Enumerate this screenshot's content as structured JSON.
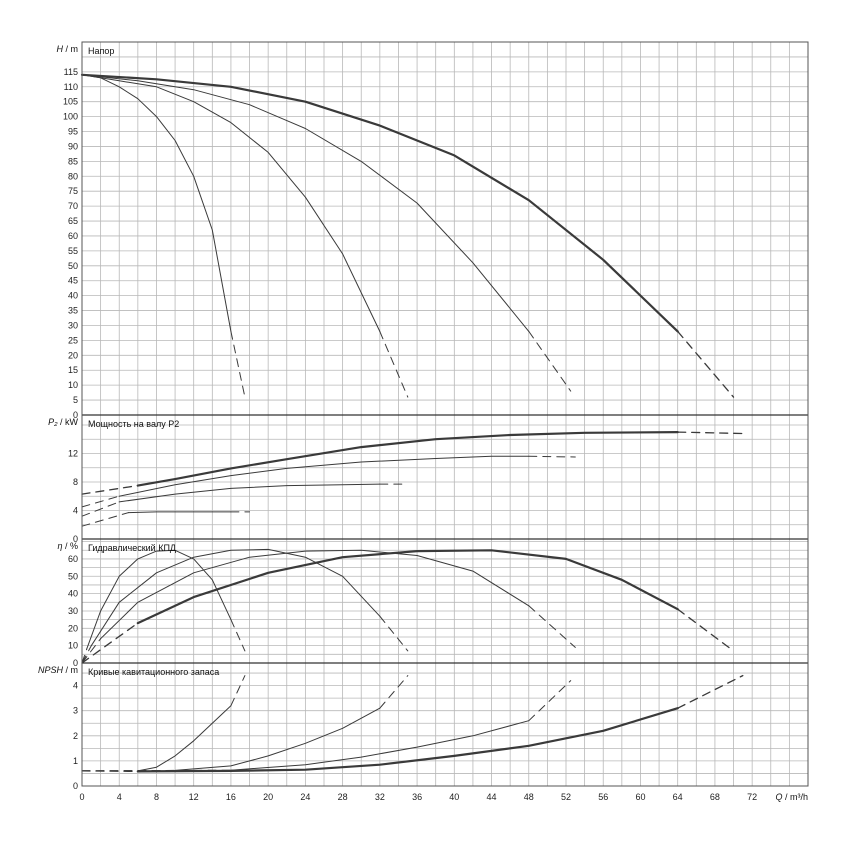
{
  "chart_data": {
    "type": "line",
    "x_axis": {
      "label_var": "Q",
      "label_unit": "m³/h",
      "min": 0,
      "max": 78,
      "ticks": [
        0,
        4,
        8,
        12,
        16,
        20,
        24,
        28,
        32,
        36,
        40,
        44,
        48,
        52,
        56,
        60,
        64,
        68,
        72
      ]
    },
    "panels": [
      {
        "id": "head",
        "title": "Напор",
        "ylabel_var": "H",
        "ylabel_unit": "m",
        "ylim": [
          0,
          125
        ],
        "yticks": [
          0,
          5,
          10,
          15,
          20,
          25,
          30,
          35,
          40,
          45,
          50,
          55,
          60,
          65,
          70,
          75,
          80,
          85,
          90,
          95,
          100,
          105,
          110,
          115
        ],
        "series": [
          {
            "points": [
              [
                0,
                114
              ],
              [
                2,
                113
              ],
              [
                4,
                110
              ],
              [
                6,
                106
              ],
              [
                8,
                100
              ],
              [
                10,
                92
              ],
              [
                12,
                80
              ],
              [
                14,
                62
              ],
              [
                16,
                28
              ]
            ],
            "dashed": [
              [
                16,
                28
              ],
              [
                17.5,
                6
              ]
            ],
            "weight": 1
          },
          {
            "points": [
              [
                0,
                114
              ],
              [
                4,
                112
              ],
              [
                8,
                110
              ],
              [
                12,
                105
              ],
              [
                16,
                98
              ],
              [
                20,
                88
              ],
              [
                24,
                73
              ],
              [
                28,
                54
              ],
              [
                32,
                28
              ]
            ],
            "dashed": [
              [
                32,
                28
              ],
              [
                35,
                6
              ]
            ],
            "weight": 1
          },
          {
            "points": [
              [
                0,
                114
              ],
              [
                6,
                112
              ],
              [
                12,
                109
              ],
              [
                18,
                104
              ],
              [
                24,
                96
              ],
              [
                30,
                85
              ],
              [
                36,
                71
              ],
              [
                42,
                51
              ],
              [
                48,
                28
              ]
            ],
            "dashed": [
              [
                48,
                28
              ],
              [
                52.5,
                8
              ]
            ],
            "weight": 1
          },
          {
            "points": [
              [
                0,
                114
              ],
              [
                8,
                112.5
              ],
              [
                16,
                110
              ],
              [
                24,
                105
              ],
              [
                32,
                97
              ],
              [
                40,
                87
              ],
              [
                48,
                72
              ],
              [
                56,
                52
              ],
              [
                64,
                28
              ]
            ],
            "dashed": [
              [
                64,
                28
              ],
              [
                70,
                6
              ]
            ],
            "weight": 2.2
          }
        ]
      },
      {
        "id": "power",
        "title": "Мощность на валу P2",
        "ylabel_var": "P₂",
        "ylabel_unit": "kW",
        "ylim": [
          0,
          17.4
        ],
        "yticks": [
          0,
          4,
          8,
          12
        ],
        "series": [
          {
            "points": [
              [
                5,
                3.7
              ],
              [
                8,
                3.8
              ],
              [
                12,
                3.8
              ],
              [
                16,
                3.8
              ]
            ],
            "dashed": [
              [
                0,
                1.8
              ],
              [
                5,
                3.7
              ],
              [
                16,
                3.8
              ],
              [
                18,
                3.8
              ]
            ],
            "weight": 1
          },
          {
            "points": [
              [
                4,
                5.2
              ],
              [
                10,
                6.3
              ],
              [
                16,
                7.1
              ],
              [
                22,
                7.5
              ],
              [
                28,
                7.6
              ],
              [
                32,
                7.7
              ]
            ],
            "dashed": [
              [
                0,
                3.2
              ],
              [
                4,
                5.2
              ],
              [
                32,
                7.7
              ],
              [
                35,
                7.7
              ]
            ],
            "weight": 1
          },
          {
            "points": [
              [
                4,
                6.0
              ],
              [
                10,
                7.6
              ],
              [
                16,
                8.9
              ],
              [
                22,
                9.9
              ],
              [
                30,
                10.8
              ],
              [
                38,
                11.3
              ],
              [
                44,
                11.6
              ],
              [
                48,
                11.6
              ]
            ],
            "dashed": [
              [
                0,
                4.5
              ],
              [
                4,
                6.0
              ],
              [
                48,
                11.6
              ],
              [
                53,
                11.5
              ]
            ],
            "weight": 1
          },
          {
            "points": [
              [
                6,
                7.5
              ],
              [
                10,
                8.4
              ],
              [
                16,
                9.9
              ],
              [
                22,
                11.2
              ],
              [
                30,
                12.9
              ],
              [
                38,
                14.0
              ],
              [
                46,
                14.6
              ],
              [
                54,
                14.9
              ],
              [
                64,
                15.0
              ]
            ],
            "dashed": [
              [
                0,
                6.3
              ],
              [
                6,
                7.5
              ],
              [
                64,
                15.0
              ],
              [
                71,
                14.8
              ]
            ],
            "weight": 2.2
          }
        ]
      },
      {
        "id": "efficiency",
        "title": "Гидравлический КПД",
        "ylabel_var": "η",
        "ylabel_unit": "%",
        "ylim": [
          0,
          71.5
        ],
        "yticks": [
          0,
          10,
          20,
          30,
          40,
          50,
          60
        ],
        "series": [
          {
            "points": [
              [
                0.5,
                8
              ],
              [
                2,
                30
              ],
              [
                4,
                50
              ],
              [
                6,
                60
              ],
              [
                8,
                64.5
              ],
              [
                10,
                65
              ],
              [
                12,
                60
              ],
              [
                14,
                48
              ],
              [
                16,
                25
              ]
            ],
            "dashed": [
              [
                0,
                0
              ],
              [
                0.5,
                8
              ],
              [
                16,
                25
              ],
              [
                17.5,
                7
              ]
            ],
            "weight": 1
          },
          {
            "points": [
              [
                1,
                10
              ],
              [
                4,
                35
              ],
              [
                8,
                52
              ],
              [
                12,
                61
              ],
              [
                16,
                65
              ],
              [
                20,
                65.5
              ],
              [
                24,
                61
              ],
              [
                28,
                50
              ],
              [
                32,
                27
              ]
            ],
            "dashed": [
              [
                0,
                0
              ],
              [
                1,
                10
              ],
              [
                32,
                27
              ],
              [
                35,
                7
              ]
            ],
            "weight": 1
          },
          {
            "points": [
              [
                2,
                14
              ],
              [
                6,
                35
              ],
              [
                12,
                52
              ],
              [
                18,
                61
              ],
              [
                24,
                64.5
              ],
              [
                30,
                65
              ],
              [
                36,
                62
              ],
              [
                42,
                53
              ],
              [
                48,
                33
              ]
            ],
            "dashed": [
              [
                0,
                0
              ],
              [
                2,
                14
              ],
              [
                48,
                33
              ],
              [
                53,
                9
              ]
            ],
            "weight": 1
          },
          {
            "points": [
              [
                6,
                23
              ],
              [
                12,
                38
              ],
              [
                20,
                52
              ],
              [
                28,
                61
              ],
              [
                36,
                64.5
              ],
              [
                44,
                65
              ],
              [
                52,
                60
              ],
              [
                58,
                48
              ],
              [
                64,
                31
              ]
            ],
            "dashed": [
              [
                0,
                0
              ],
              [
                6,
                23
              ],
              [
                64,
                31
              ],
              [
                70,
                7
              ]
            ],
            "weight": 2.2
          }
        ]
      },
      {
        "id": "npsh",
        "title": "Кривые кавитационного запаса",
        "ylabel_var": "NPSH",
        "ylabel_unit": "m",
        "ylim": [
          0,
          4.9
        ],
        "yticks": [
          0,
          1,
          2,
          3,
          4
        ],
        "series": [
          {
            "points": [
              [
                6,
                0.6
              ],
              [
                8,
                0.75
              ],
              [
                10,
                1.2
              ],
              [
                12,
                1.8
              ],
              [
                14,
                2.5
              ],
              [
                16,
                3.2
              ]
            ],
            "dashed": [
              [
                0,
                0.6
              ],
              [
                6,
                0.6
              ],
              [
                16,
                3.2
              ],
              [
                17.5,
                4.4
              ]
            ],
            "weight": 1
          },
          {
            "points": [
              [
                10,
                0.62
              ],
              [
                16,
                0.8
              ],
              [
                20,
                1.2
              ],
              [
                24,
                1.7
              ],
              [
                28,
                2.3
              ],
              [
                32,
                3.1
              ]
            ],
            "dashed": [
              [
                0,
                0.6
              ],
              [
                10,
                0.62
              ],
              [
                32,
                3.1
              ],
              [
                35,
                4.4
              ]
            ],
            "weight": 1
          },
          {
            "points": [
              [
                16,
                0.63
              ],
              [
                24,
                0.85
              ],
              [
                30,
                1.15
              ],
              [
                36,
                1.55
              ],
              [
                42,
                2.0
              ],
              [
                48,
                2.6
              ]
            ],
            "dashed": [
              [
                0,
                0.6
              ],
              [
                16,
                0.63
              ],
              [
                48,
                2.6
              ],
              [
                52.5,
                4.2
              ]
            ],
            "weight": 1
          },
          {
            "points": [
              [
                6,
                0.58
              ],
              [
                16,
                0.6
              ],
              [
                24,
                0.65
              ],
              [
                32,
                0.85
              ],
              [
                40,
                1.2
              ],
              [
                48,
                1.6
              ],
              [
                56,
                2.2
              ],
              [
                64,
                3.1
              ]
            ],
            "dashed": [
              [
                0,
                0.6
              ],
              [
                6,
                0.58
              ],
              [
                64,
                3.1
              ],
              [
                71,
                4.4
              ]
            ],
            "weight": 2.2
          }
        ]
      }
    ]
  }
}
